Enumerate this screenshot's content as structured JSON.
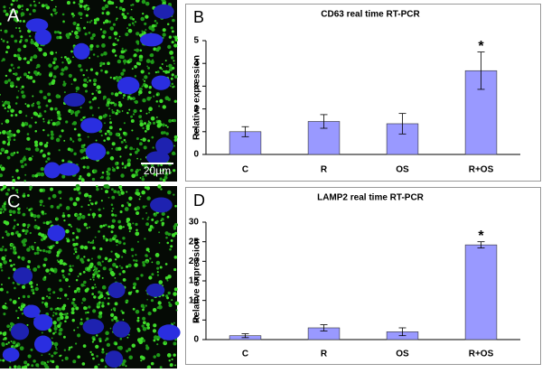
{
  "panels": [
    {
      "label": "A",
      "scale_bar": "20µm"
    },
    {
      "label": "C"
    }
  ],
  "chart_data": [
    {
      "type": "bar",
      "panel_label": "B",
      "title": "CD63 real time RT-PCR",
      "y_label": "Relative expression",
      "categories": [
        "C",
        "R",
        "OS",
        "R+OS"
      ],
      "values": [
        1.0,
        1.45,
        1.35,
        3.68
      ],
      "errors": [
        0.22,
        0.3,
        0.45,
        0.82
      ],
      "color": "#9999ff",
      "ylim": [
        0,
        5
      ],
      "yticks": [
        0,
        1,
        2,
        3,
        4,
        5
      ],
      "annotations": [
        {
          "text": "*",
          "x": "R+OS"
        }
      ]
    },
    {
      "type": "bar",
      "panel_label": "D",
      "title": "LAMP2 real time RT-PCR",
      "y_label": "Relative expression",
      "categories": [
        "C",
        "R",
        "OS",
        "R+OS"
      ],
      "values": [
        1.0,
        3.0,
        2.0,
        24.2
      ],
      "errors": [
        0.5,
        0.8,
        1.0,
        0.8
      ],
      "color": "#9999ff",
      "ylim": [
        0,
        30
      ],
      "yticks": [
        0,
        5,
        10,
        15,
        20,
        25,
        30
      ],
      "annotations": [
        {
          "text": "*",
          "x": "R+OS"
        }
      ]
    }
  ]
}
